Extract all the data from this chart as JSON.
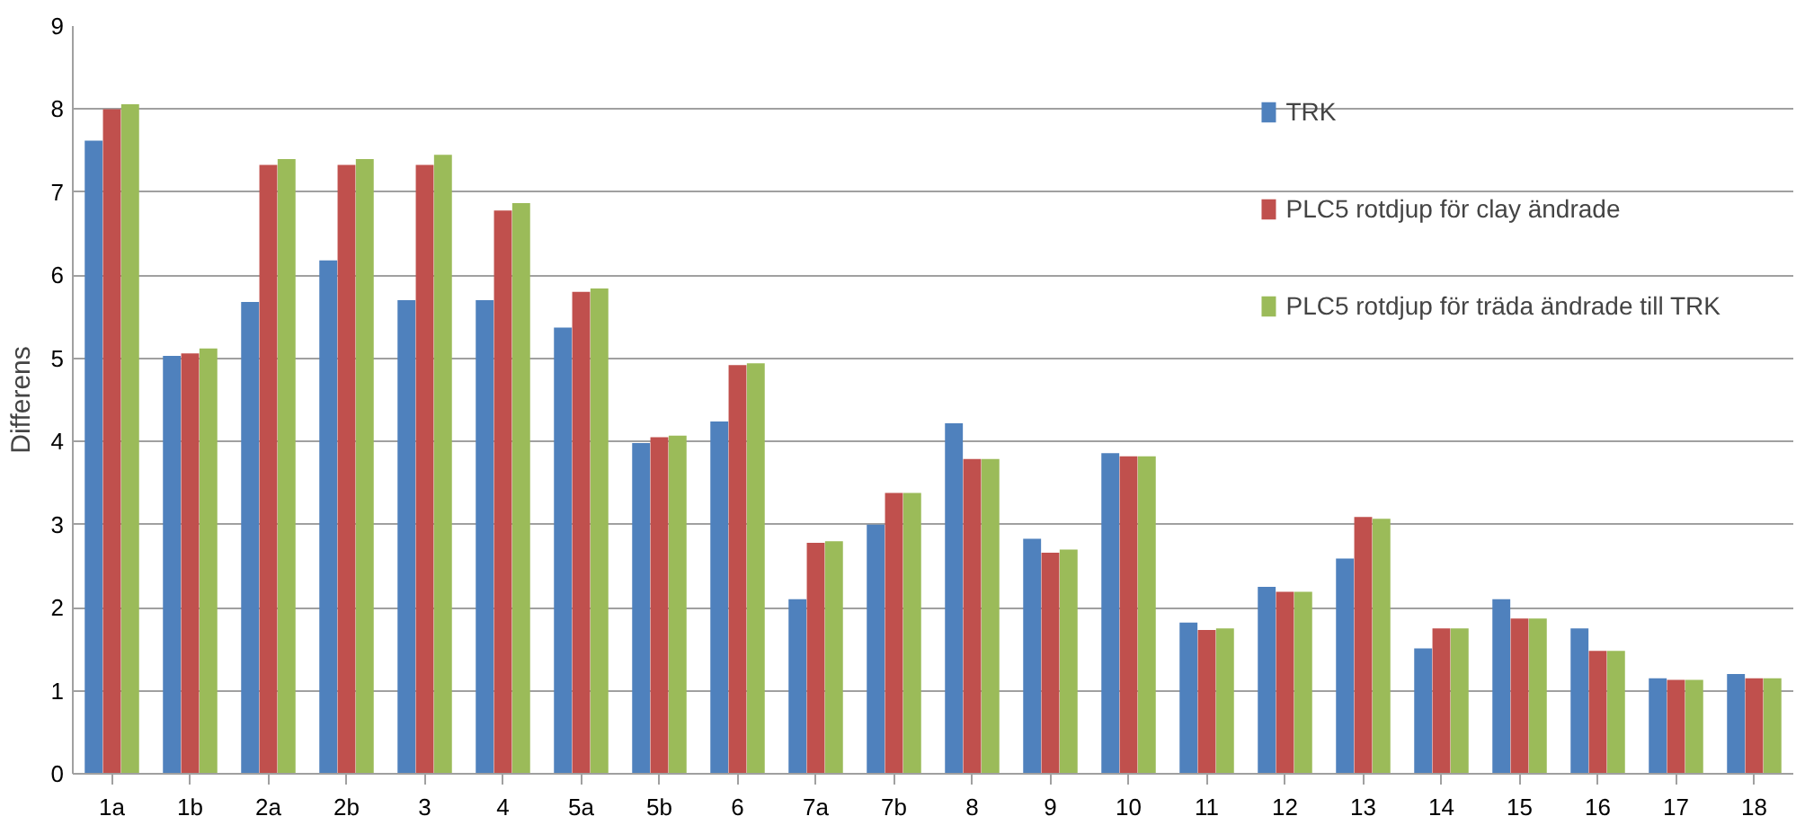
{
  "chart_data": {
    "type": "bar",
    "ylabel": "Differens",
    "categories": [
      "1a",
      "1b",
      "2a",
      "2b",
      "3",
      "4",
      "5a",
      "5b",
      "6",
      "7a",
      "7b",
      "8",
      "9",
      "10",
      "11",
      "12",
      "13",
      "14",
      "15",
      "16",
      "17",
      "18"
    ],
    "series": [
      {
        "name": "TRK",
        "color": "#4f81bd",
        "values": [
          7.62,
          5.03,
          5.68,
          6.18,
          5.7,
          5.7,
          5.37,
          3.98,
          4.24,
          2.1,
          3.0,
          4.22,
          2.83,
          3.86,
          1.82,
          2.25,
          2.59,
          1.51,
          2.1,
          1.75,
          1.15,
          1.2
        ]
      },
      {
        "name": "PLC5 rotdjup för clay ändrade",
        "color": "#c0504d",
        "values": [
          8.0,
          5.06,
          7.33,
          7.33,
          7.33,
          6.78,
          5.8,
          4.05,
          4.92,
          2.78,
          3.38,
          3.79,
          2.66,
          3.82,
          1.73,
          2.19,
          3.09,
          1.75,
          1.87,
          1.48,
          1.13,
          1.15
        ]
      },
      {
        "name": "PLC5 rotdjup för träda ändrade till TRK",
        "color": "#9bbb59",
        "values": [
          8.06,
          5.12,
          7.4,
          7.4,
          7.45,
          6.87,
          5.84,
          4.07,
          4.94,
          2.8,
          3.38,
          3.79,
          2.7,
          3.82,
          1.75,
          2.19,
          3.07,
          1.75,
          1.87,
          1.48,
          1.13,
          1.15
        ]
      }
    ],
    "ylim": [
      0,
      9
    ],
    "yticks": [
      0,
      1,
      2,
      3,
      4,
      5,
      6,
      7,
      8,
      9
    ],
    "grid": "y",
    "legend": "top right"
  }
}
